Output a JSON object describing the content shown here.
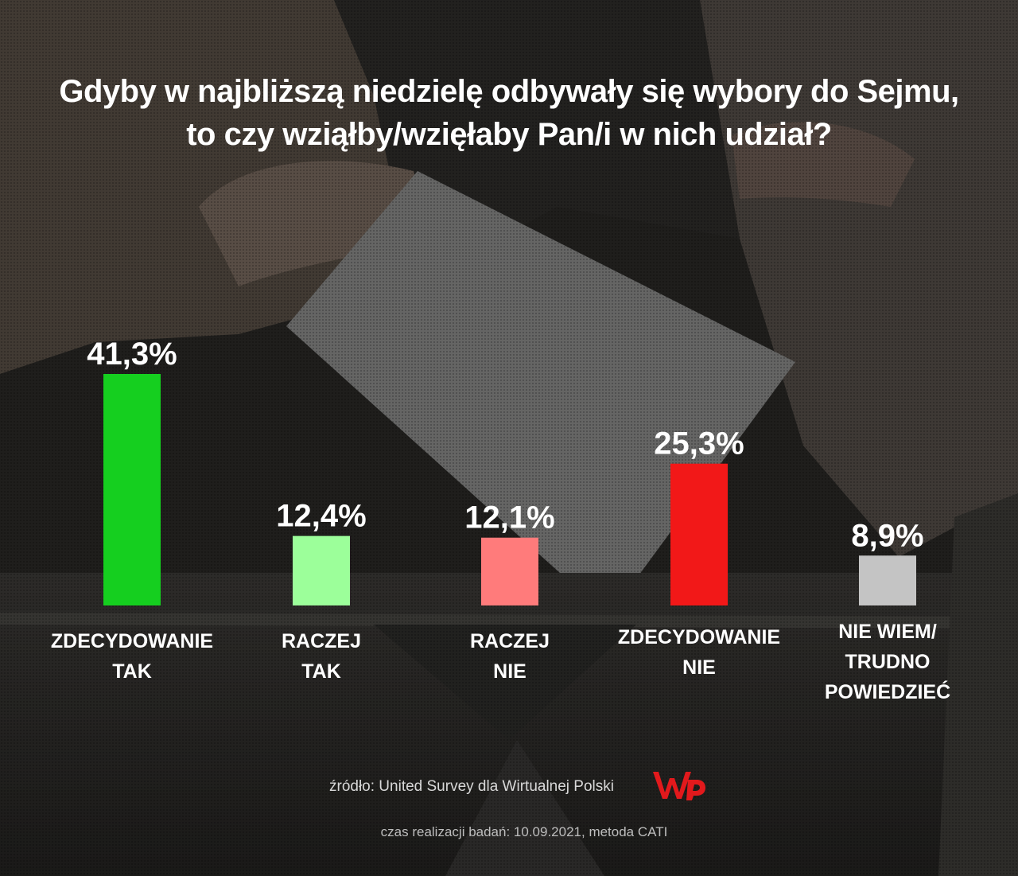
{
  "title": {
    "line1": "Gdyby w najbliższą niedzielę odbywały się wybory do Sejmu,",
    "line2": "to czy wziąłby/wzięłaby Pan/i w nich udział?"
  },
  "chart_data": {
    "type": "bar",
    "categories": [
      [
        "ZDECYDOWANIE",
        "TAK"
      ],
      [
        "RACZEJ",
        "TAK"
      ],
      [
        "RACZEJ",
        "NIE"
      ],
      [
        "ZDECYDOWANIE",
        "NIE"
      ],
      [
        "NIE WIEM/",
        "TRUDNO POWIEDZIEĆ"
      ]
    ],
    "values": [
      41.3,
      12.4,
      12.1,
      25.3,
      8.9
    ],
    "value_labels": [
      "41,3%",
      "12,4%",
      "12,1%",
      "25,3%",
      "8,9%"
    ],
    "colors": [
      "#15cf1f",
      "#9cff9a",
      "#ff7b7b",
      "#f21818",
      "#c4c4c4"
    ],
    "unit": "%",
    "ylim": [
      0,
      41.3
    ],
    "grid": false,
    "legend": "none"
  },
  "footer": {
    "source": "źródło: United Survey dla Wirtualnej Polski",
    "method": "czas realizacji badań: 10.09.2021, metoda CATI",
    "logo_icon": "wp-logo-icon",
    "logo_color": "#e2191c"
  }
}
